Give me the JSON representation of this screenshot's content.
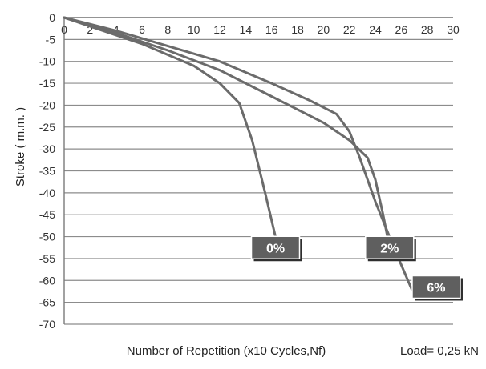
{
  "chart_data": {
    "type": "line",
    "title": "",
    "xlabel": "Number of Repetition (x10 Cycles,Nf)",
    "ylabel": "Stroke ( m.m. )",
    "annotation": "Load= 0,25 kN",
    "xlim": [
      0,
      30
    ],
    "ylim": [
      -70,
      0
    ],
    "x_ticks": [
      0,
      2,
      4,
      6,
      8,
      10,
      12,
      14,
      16,
      18,
      20,
      22,
      24,
      26,
      28,
      30
    ],
    "y_ticks": [
      0,
      -5,
      -10,
      -15,
      -20,
      -25,
      -30,
      -35,
      -40,
      -45,
      -50,
      -55,
      -60,
      -65,
      -70
    ],
    "grid": true,
    "line_color": "#6b6b6b",
    "label_box_color": "#5f5f5f",
    "series": [
      {
        "name": "0%",
        "points": [
          [
            0,
            0
          ],
          [
            2,
            -2
          ],
          [
            4,
            -4
          ],
          [
            6,
            -6
          ],
          [
            8,
            -8.5
          ],
          [
            10,
            -11
          ],
          [
            12,
            -15
          ],
          [
            13.5,
            -19.5
          ],
          [
            14.5,
            -28
          ],
          [
            15.5,
            -40
          ],
          [
            16.3,
            -50
          ]
        ]
      },
      {
        "name": "2%",
        "points": [
          [
            0,
            0
          ],
          [
            4,
            -3.5
          ],
          [
            8,
            -7.5
          ],
          [
            12,
            -12
          ],
          [
            16,
            -18
          ],
          [
            20,
            -24
          ],
          [
            22,
            -28
          ],
          [
            23.4,
            -32
          ],
          [
            24,
            -37
          ],
          [
            24.6,
            -45
          ],
          [
            25.2,
            -54
          ]
        ]
      },
      {
        "name": "6%",
        "points": [
          [
            0,
            0
          ],
          [
            4,
            -3
          ],
          [
            8,
            -6.5
          ],
          [
            12,
            -10
          ],
          [
            16,
            -15
          ],
          [
            19,
            -19
          ],
          [
            21,
            -22
          ],
          [
            22,
            -26
          ],
          [
            22.8,
            -32
          ],
          [
            24,
            -42
          ],
          [
            25.5,
            -53
          ],
          [
            26.8,
            -62
          ]
        ]
      }
    ],
    "series_label_anchor": [
      [
        16.3,
        -52.5
      ],
      [
        25.1,
        -52.5
      ],
      [
        28.7,
        -61.5
      ]
    ]
  }
}
